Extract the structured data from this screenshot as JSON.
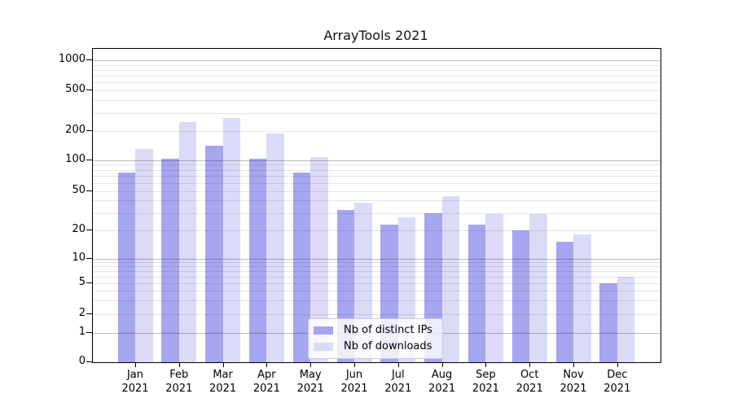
{
  "title": "ArrayTools 2021",
  "chart_data": {
    "type": "bar",
    "title": "ArrayTools 2021",
    "categories": [
      "Jan",
      "Feb",
      "Mar",
      "Apr",
      "May",
      "Jun",
      "Jul",
      "Aug",
      "Sep",
      "Oct",
      "Nov",
      "Dec"
    ],
    "x_year": "2021",
    "series": [
      {
        "name": "Nb of distinct IPs",
        "color": "#a5a5f0",
        "values": [
          76,
          104,
          140,
          103,
          75,
          32,
          23,
          30,
          23,
          20,
          15,
          5
        ]
      },
      {
        "name": "Nb of downloads",
        "color": "#dbdbf8",
        "values": [
          130,
          242,
          266,
          187,
          108,
          38,
          27,
          44,
          29,
          29,
          18,
          6
        ]
      }
    ],
    "yscale": "symlog",
    "y_ticks": [
      0,
      1,
      2,
      5,
      10,
      20,
      50,
      100,
      200,
      500,
      1000
    ],
    "ylim": [
      0,
      1300
    ],
    "grid": {
      "major": true,
      "minor": true
    },
    "legend": {
      "position": "inside-bottom-center"
    },
    "colors": {
      "major_grid": "#bfbfbf",
      "minor_grid": "#e6e6e6",
      "axis": "#000000",
      "background": "#ffffff"
    }
  }
}
